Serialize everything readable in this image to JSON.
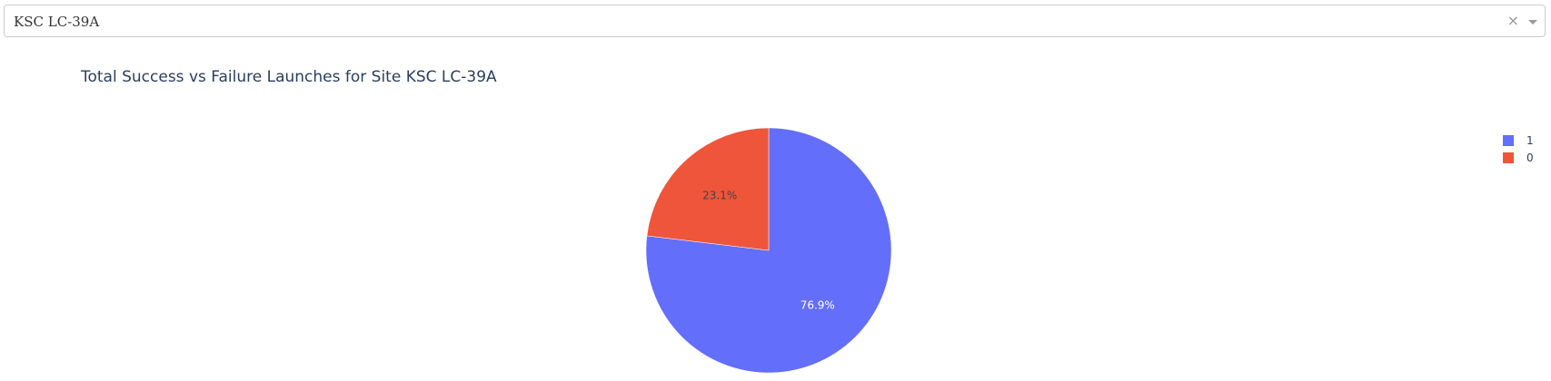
{
  "dropdown": {
    "selected": "KSC LC-39A",
    "clear_glyph": "×"
  },
  "chart_data": {
    "type": "pie",
    "title": "Total Success vs Failure Launches for Site KSC LC-39A",
    "categories": [
      "1",
      "0"
    ],
    "values": [
      76.9,
      23.1
    ],
    "labels": [
      "76.9%",
      "23.1%"
    ],
    "colors": [
      "#636efa",
      "#ef553b"
    ],
    "label_colors": [
      "#ffffff",
      "#444444"
    ],
    "legend": {
      "placement": "top-right",
      "entries": [
        "1",
        "0"
      ]
    }
  }
}
